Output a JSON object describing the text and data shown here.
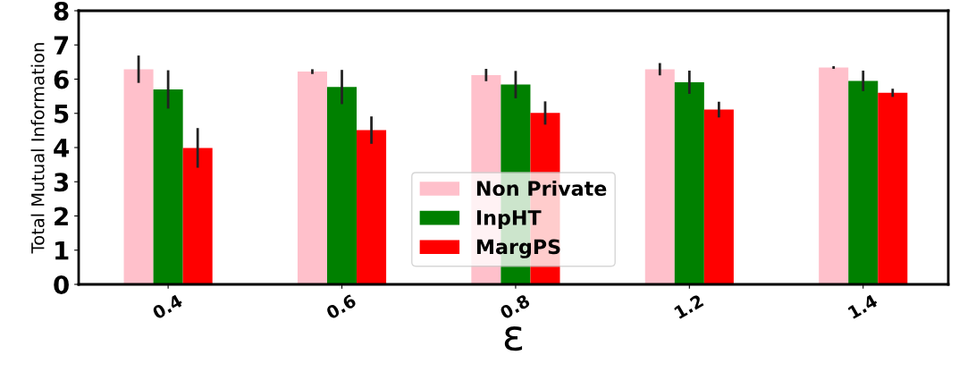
{
  "chart_data": {
    "type": "bar",
    "xlabel": "ε",
    "ylabel": "Total Mutual Information",
    "categories": [
      "0.4",
      "0.6",
      "0.8",
      "1.2",
      "1.4"
    ],
    "series": [
      {
        "name": "Non Private",
        "color": "#ffc0cb",
        "values": [
          6.29,
          6.22,
          6.12,
          6.29,
          6.34
        ],
        "errors": [
          0.4,
          0.07,
          0.18,
          0.18,
          0.04
        ]
      },
      {
        "name": "InpHT",
        "color": "#008000",
        "values": [
          5.7,
          5.77,
          5.84,
          5.91,
          5.95
        ],
        "errors": [
          0.56,
          0.5,
          0.4,
          0.34,
          0.3
        ]
      },
      {
        "name": "MargPS",
        "color": "#ff0000",
        "values": [
          3.99,
          4.51,
          5.01,
          5.11,
          5.6
        ],
        "errors": [
          0.58,
          0.4,
          0.34,
          0.23,
          0.12
        ]
      }
    ],
    "ylim": [
      0,
      8
    ],
    "yticks": [
      0,
      1,
      2,
      3,
      4,
      5,
      6,
      7,
      8
    ],
    "grid": false,
    "legend": "lower center"
  }
}
